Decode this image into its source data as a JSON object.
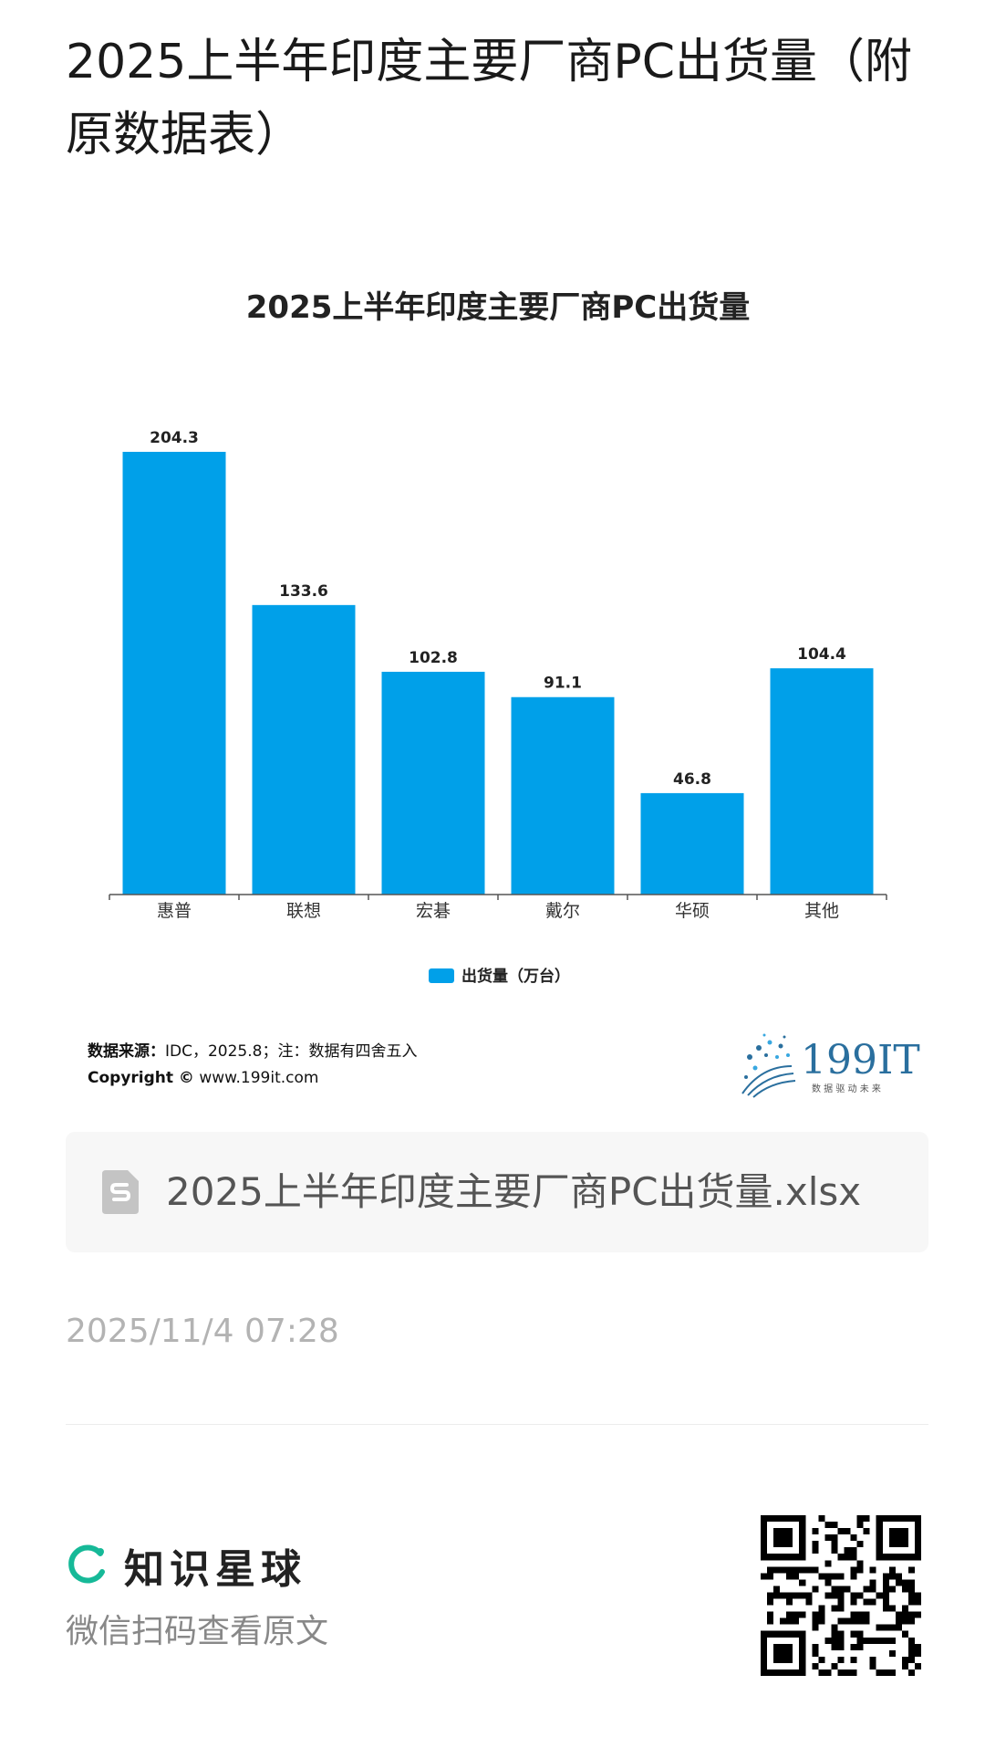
{
  "article": {
    "title": "2025上半年印度主要厂商PC出货量（附原数据表）",
    "timestamp": "2025/11/4 07:28"
  },
  "chart_data": {
    "type": "bar",
    "title": "2025上半年印度主要厂商PC出货量",
    "categories": [
      "惠普",
      "联想",
      "宏碁",
      "戴尔",
      "华硕",
      "其他"
    ],
    "series": [
      {
        "name": "出货量（万台）",
        "values": [
          204.3,
          133.6,
          102.8,
          91.1,
          46.8,
          104.4
        ]
      }
    ],
    "ylim": [
      0,
      204.3
    ],
    "grid": false,
    "legend": "bottom",
    "bar_color": "#00a0e9"
  },
  "source": {
    "label": "数据来源：",
    "text": "IDC，2025.8；注：数据有四舍五入",
    "copyright_label": "Copyright ©",
    "copyright_url": "www.199it.com"
  },
  "brand": {
    "logo_text": "199IT",
    "tagline": "数 据 驱 动 未 来"
  },
  "attachment": {
    "file_name": "2025上半年印度主要厂商PC出货量.xlsx",
    "icon": "spreadsheet-file-icon"
  },
  "footer": {
    "platform_name": "知识星球",
    "scan_hint": "微信扫码查看原文",
    "accent": "#16b998"
  }
}
